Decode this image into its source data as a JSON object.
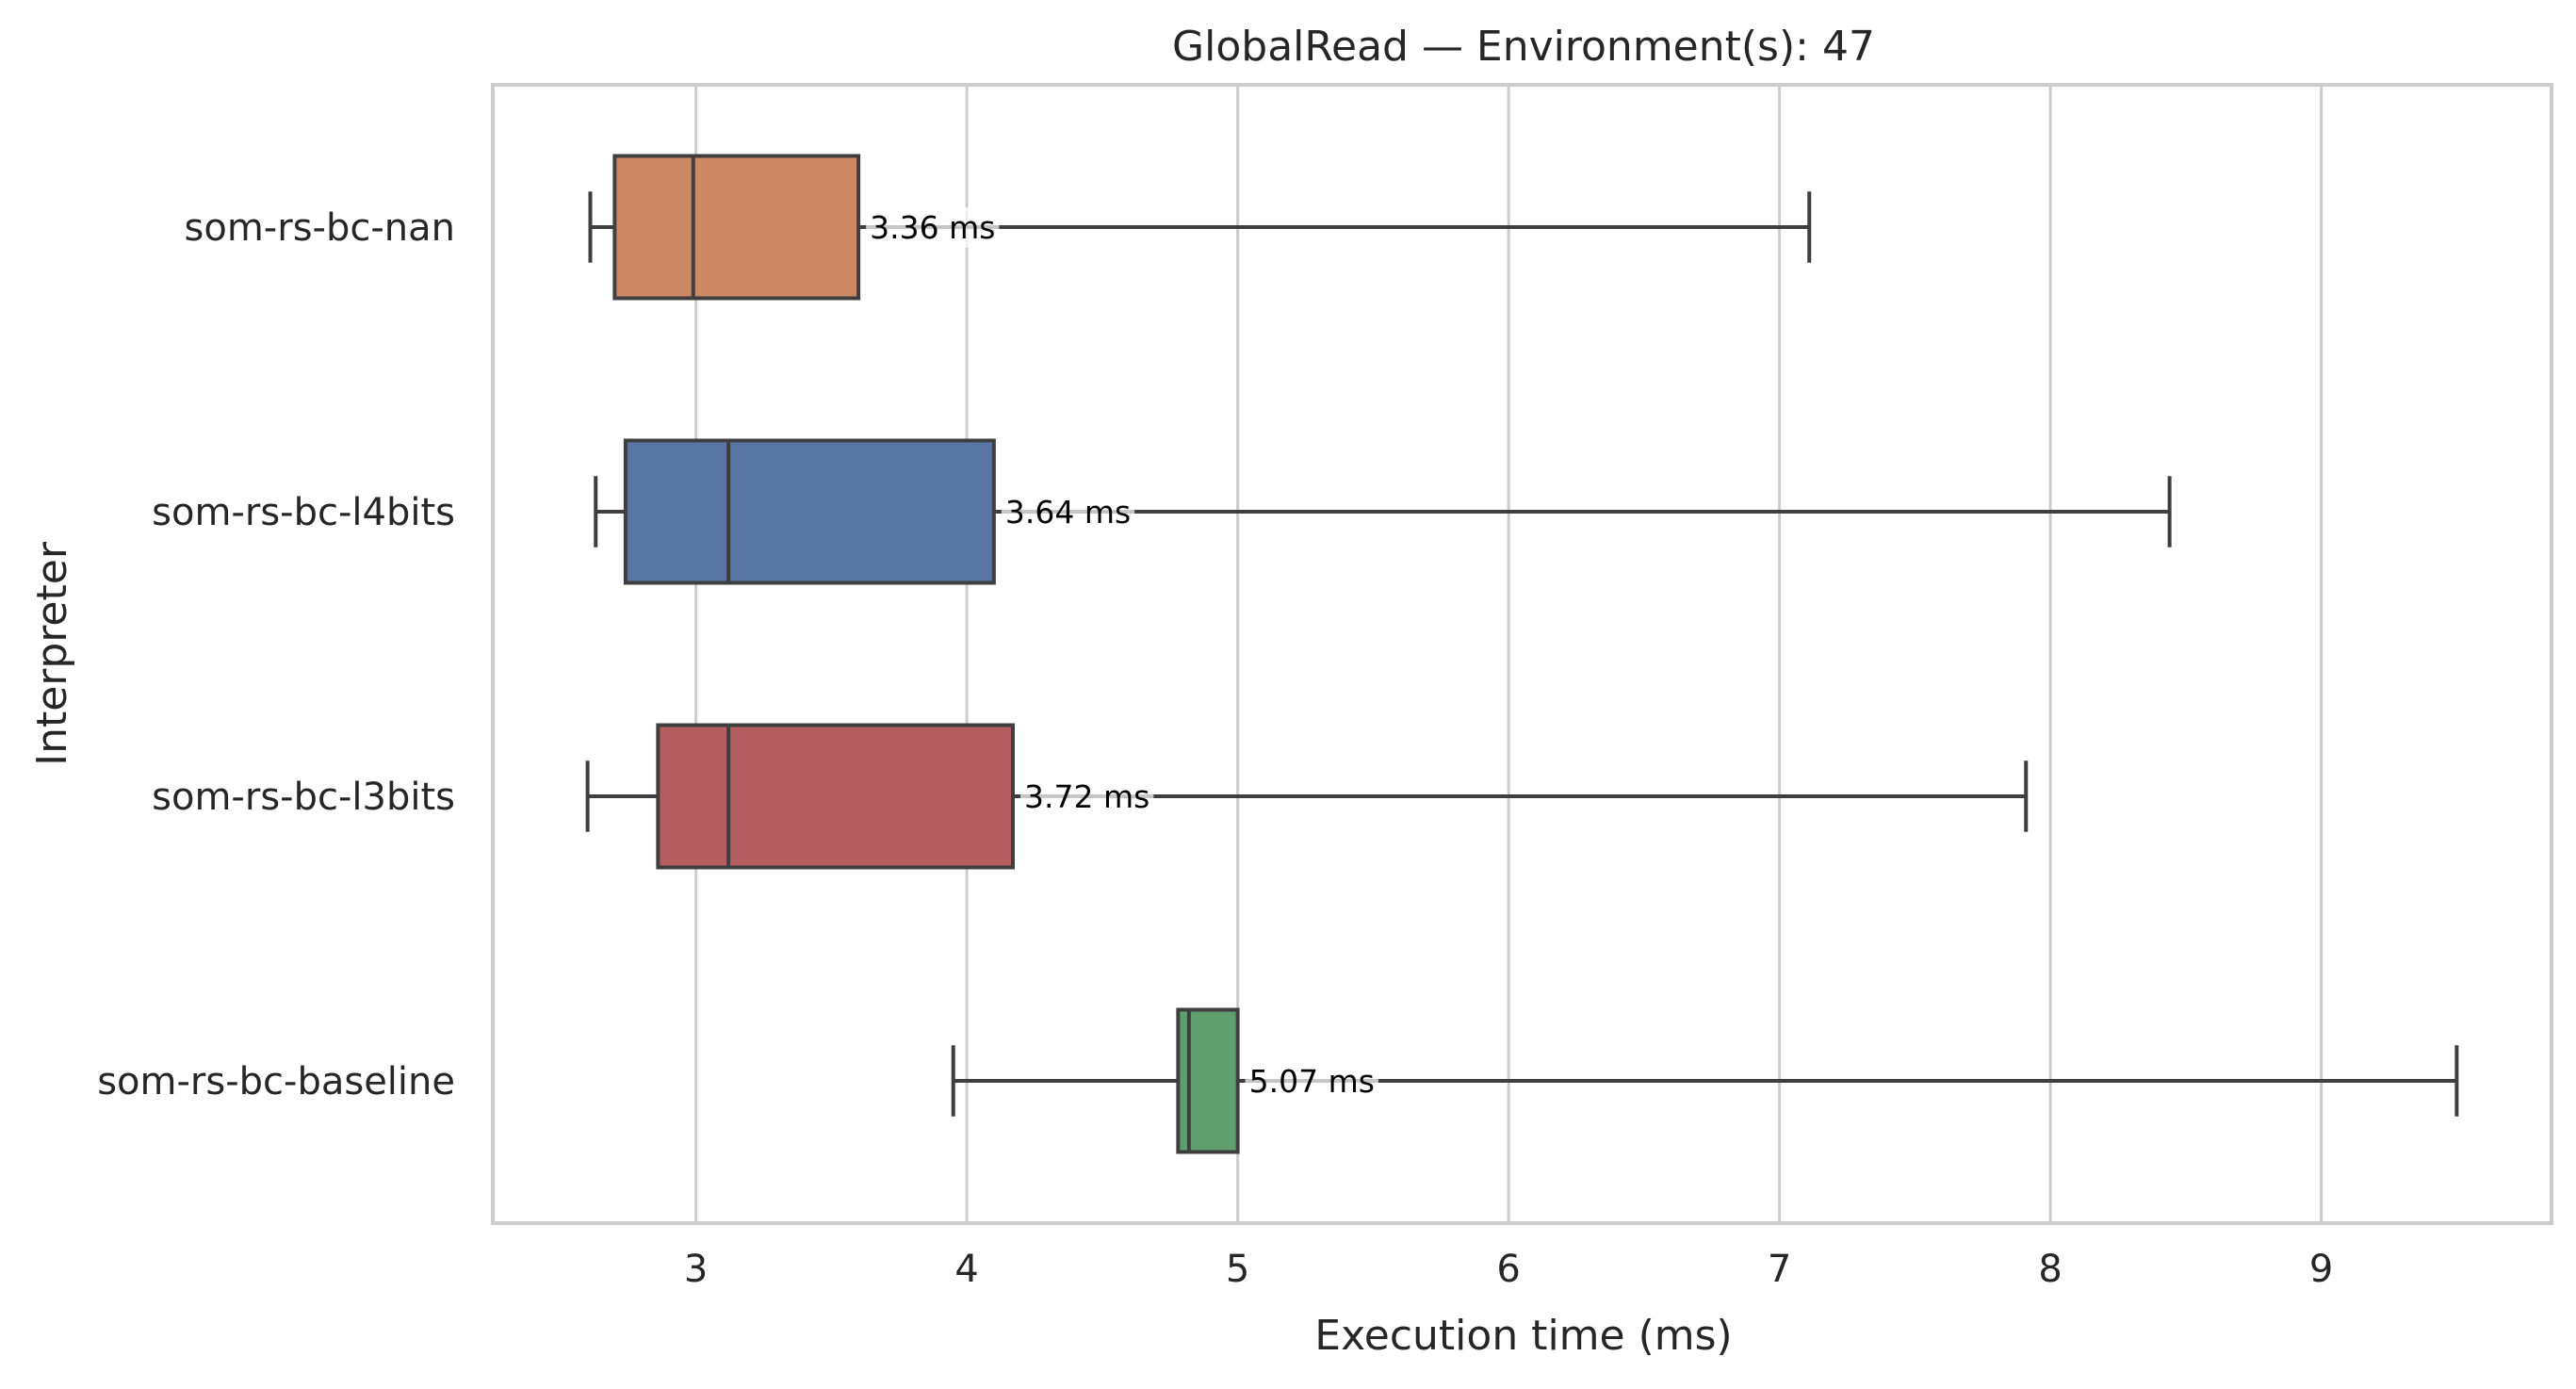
{
  "chart_data": {
    "type": "boxplot",
    "orientation": "horizontal",
    "title": "GlobalRead — Environment(s): 47",
    "xlabel": "Execution time (ms)",
    "ylabel": "Interpreter",
    "xlim": [
      2.25,
      9.85
    ],
    "xticks": [
      3,
      4,
      5,
      6,
      7,
      8,
      9
    ],
    "grid": "x",
    "series": [
      {
        "name": "som-rs-bc-nan",
        "color": "#cc8963",
        "whisker_low": 2.61,
        "q1": 2.7,
        "median": 2.99,
        "q3": 3.6,
        "whisker_high": 7.11,
        "mean_label": "3.36 ms"
      },
      {
        "name": "som-rs-bc-l4bits",
        "color": "#5975a4",
        "whisker_low": 2.63,
        "q1": 2.74,
        "median": 3.12,
        "q3": 4.1,
        "whisker_high": 8.44,
        "mean_label": "3.64 ms"
      },
      {
        "name": "som-rs-bc-l3bits",
        "color": "#b55d60",
        "whisker_low": 2.6,
        "q1": 2.86,
        "median": 3.12,
        "q3": 4.17,
        "whisker_high": 7.91,
        "mean_label": "3.72 ms"
      },
      {
        "name": "som-rs-bc-baseline",
        "color": "#5f9e6e",
        "whisker_low": 3.95,
        "q1": 4.78,
        "median": 4.82,
        "q3": 5.0,
        "whisker_high": 9.5,
        "mean_label": "5.07 ms"
      }
    ]
  }
}
